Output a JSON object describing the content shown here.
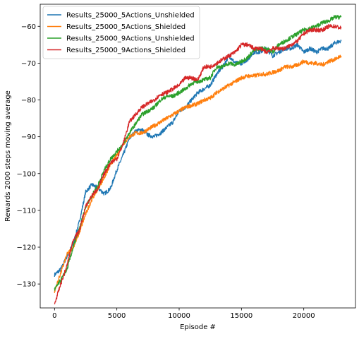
{
  "chart_data": {
    "type": "line",
    "title": "",
    "xlabel": "Episode #",
    "ylabel": "Rewards 2000 steps moving average",
    "xlim": [
      -1150,
      24150
    ],
    "ylim": [
      -136.5,
      -54
    ],
    "xticks": [
      0,
      5000,
      10000,
      15000,
      20000
    ],
    "xtick_labels": [
      "0",
      "5000",
      "10000",
      "15000",
      "20000"
    ],
    "yticks": [
      -130,
      -120,
      -110,
      -100,
      -90,
      -80,
      -70,
      -60
    ],
    "ytick_labels": [
      "−130",
      "−120",
      "−110",
      "−100",
      "−90",
      "−80",
      "−70",
      "−60"
    ],
    "grid": false,
    "legend_position": "upper-left",
    "series": [
      {
        "name": "Results_25000_5Actions_Unshielded",
        "color": "#1f77b4",
        "x": [
          0,
          500,
          1000,
          1500,
          2000,
          2500,
          3000,
          3500,
          4000,
          4500,
          5000,
          5500,
          6000,
          6500,
          7000,
          7500,
          8000,
          8500,
          9000,
          9500,
          10000,
          10500,
          11000,
          11500,
          12000,
          12500,
          13000,
          13500,
          14000,
          14500,
          15000,
          15500,
          16000,
          16500,
          17000,
          17500,
          18000,
          18500,
          19000,
          19500,
          20000,
          20500,
          21000,
          21500,
          22000,
          22500,
          23000
        ],
        "y": [
          -127.5,
          -126,
          -122.5,
          -119,
          -113,
          -105,
          -103,
          -104,
          -105.5,
          -104,
          -99,
          -95,
          -90.5,
          -88.5,
          -88,
          -89.5,
          -90,
          -89,
          -87.5,
          -86,
          -83,
          -82,
          -80,
          -78,
          -77,
          -76,
          -73,
          -71,
          -68,
          -70,
          -70,
          -69,
          -67,
          -67,
          -66,
          -68,
          -67,
          -66,
          -66,
          -65,
          -67,
          -66,
          -67,
          -66,
          -66,
          -64.5,
          -64
        ]
      },
      {
        "name": "Results_25000_5Actions_Shielded",
        "color": "#ff7f0e",
        "x": [
          0,
          500,
          1000,
          1500,
          2000,
          2500,
          3000,
          3500,
          4000,
          4500,
          5000,
          5500,
          6000,
          6500,
          7000,
          7500,
          8000,
          8500,
          9000,
          9500,
          10000,
          10500,
          11000,
          11500,
          12000,
          12500,
          13000,
          13500,
          14000,
          14500,
          15000,
          15500,
          16000,
          16500,
          17000,
          17500,
          18000,
          18500,
          19000,
          19500,
          20000,
          20500,
          21000,
          21500,
          22000,
          22500,
          23000
        ],
        "y": [
          -132,
          -127,
          -122,
          -120,
          -116,
          -111,
          -107,
          -104,
          -101,
          -97.5,
          -95,
          -92,
          -90,
          -89,
          -89,
          -88,
          -87,
          -86,
          -85,
          -84,
          -83,
          -82,
          -81.5,
          -81,
          -80,
          -79.5,
          -78,
          -77,
          -76,
          -75,
          -74,
          -73.5,
          -73.5,
          -73,
          -73,
          -72.5,
          -72,
          -71,
          -71,
          -70.5,
          -69.5,
          -70,
          -70,
          -70.5,
          -69.5,
          -69,
          -68
        ]
      },
      {
        "name": "Results_25000_9Actions_Unshielded",
        "color": "#2ca02c",
        "x": [
          0,
          500,
          1000,
          1500,
          2000,
          2500,
          3000,
          3500,
          4000,
          4500,
          5000,
          5500,
          6000,
          6500,
          7000,
          7500,
          8000,
          8500,
          9000,
          9500,
          10000,
          10500,
          11000,
          11500,
          12000,
          12500,
          13000,
          13500,
          14000,
          14500,
          15000,
          15500,
          16000,
          16500,
          17000,
          17500,
          18000,
          18500,
          19000,
          19500,
          20000,
          20500,
          21000,
          21500,
          22000,
          22500,
          23000
        ],
        "y": [
          -131.5,
          -129,
          -126,
          -120,
          -115,
          -109,
          -106,
          -103,
          -99,
          -96,
          -94,
          -92,
          -89,
          -86.5,
          -84,
          -83,
          -82,
          -80,
          -79,
          -79,
          -78,
          -77,
          -75.5,
          -75,
          -74.5,
          -74,
          -71,
          -71,
          -70,
          -70.5,
          -69.5,
          -68.5,
          -66.5,
          -66,
          -66,
          -67,
          -65,
          -64,
          -63,
          -62,
          -61,
          -60.5,
          -60,
          -59,
          -58.5,
          -57.5,
          -57.5
        ]
      },
      {
        "name": "Results_25000_9Actions_Shielded",
        "color": "#d62728",
        "x": [
          0,
          500,
          1000,
          1500,
          2000,
          2500,
          3000,
          3500,
          4000,
          4500,
          5000,
          5500,
          6000,
          6500,
          7000,
          7500,
          8000,
          8500,
          9000,
          9500,
          10000,
          10500,
          11000,
          11500,
          12000,
          12500,
          13000,
          13500,
          14000,
          14500,
          15000,
          15500,
          16000,
          16500,
          17000,
          17500,
          18000,
          18500,
          19000,
          19500,
          20000,
          20500,
          21000,
          21500,
          22000,
          22500,
          23000
        ],
        "y": [
          -135.5,
          -130,
          -125,
          -118,
          -115.5,
          -109,
          -106,
          -104,
          -100,
          -97,
          -96,
          -92,
          -86,
          -84,
          -82,
          -81,
          -80,
          -78.5,
          -78,
          -77,
          -76,
          -74,
          -74,
          -74.5,
          -71,
          -71,
          -70,
          -69,
          -68,
          -67,
          -65,
          -65,
          -66,
          -66,
          -67,
          -66,
          -66,
          -66,
          -65,
          -64,
          -62,
          -61,
          -61,
          -61,
          -60,
          -60,
          -60.5
        ]
      }
    ]
  }
}
